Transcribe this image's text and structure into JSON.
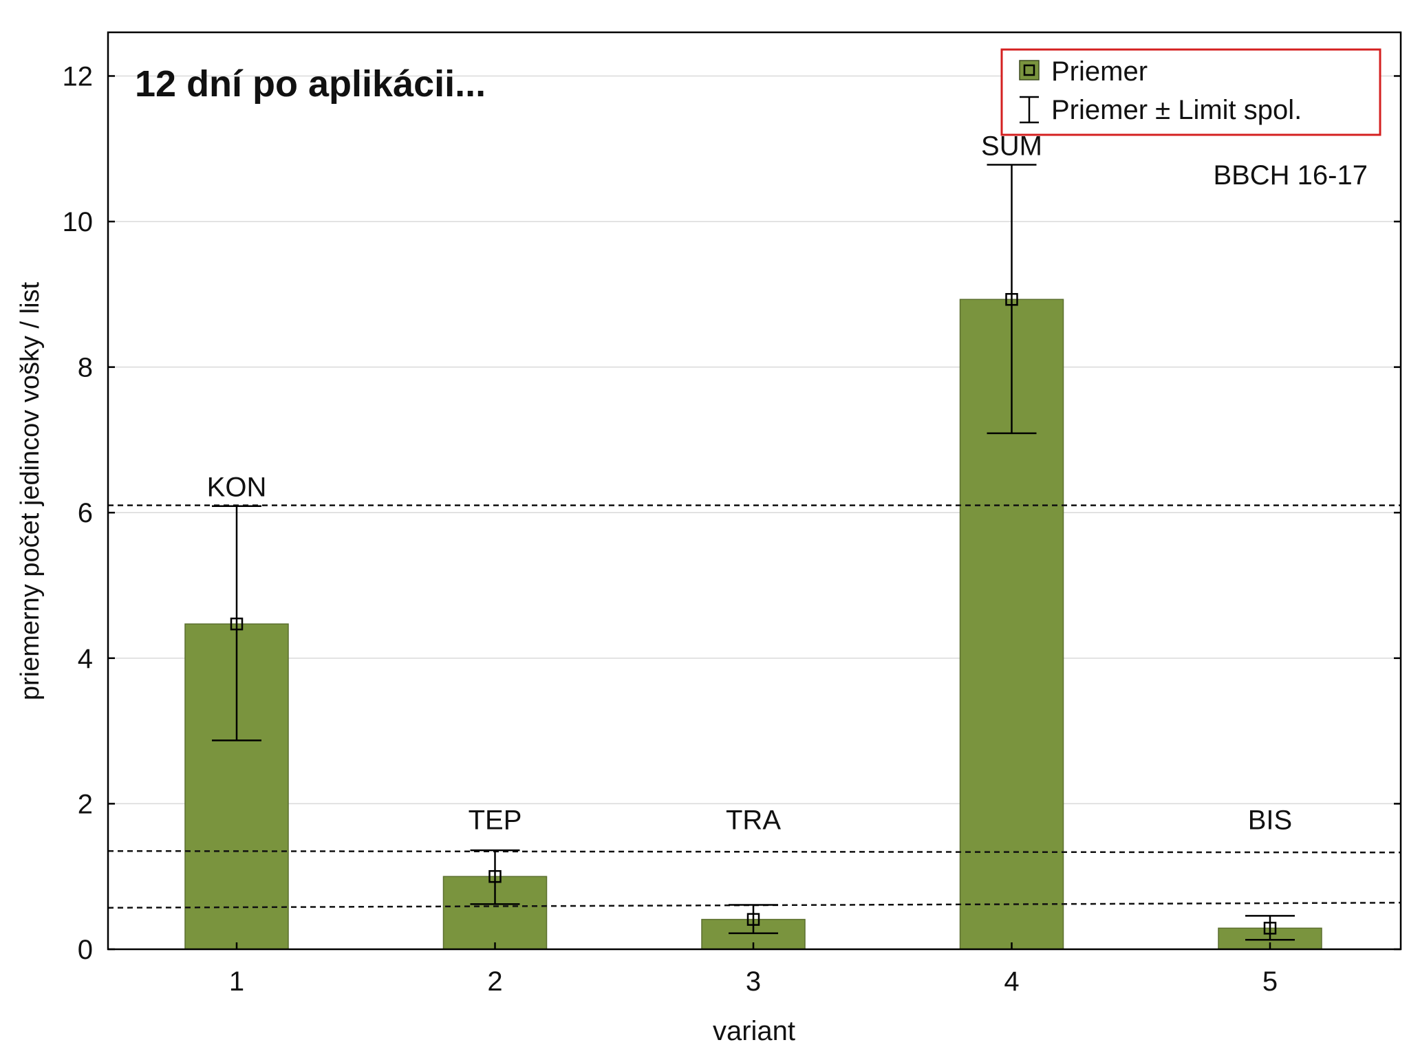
{
  "chart_data": {
    "type": "bar",
    "title": "12 dní po aplikácii...",
    "annotation": "BBCH 16-17",
    "xlabel": "variant",
    "ylabel": "priemerny počet jedincov vošky / list",
    "categories": [
      "1",
      "2",
      "3",
      "4",
      "5"
    ],
    "bar_labels": [
      "KON",
      "TEP",
      "TRA",
      "SUM",
      "BIS"
    ],
    "ylim": [
      0,
      12.6
    ],
    "yticks": [
      0,
      2,
      4,
      6,
      8,
      10,
      12
    ],
    "ytick_labels": [
      "0",
      "2",
      "4",
      "6",
      "8",
      "10",
      "12"
    ],
    "grid": true,
    "legend_position": "top-right",
    "legend": {
      "mean_label": "Priemer",
      "ci_label": "Priemer ± Limit spol."
    },
    "series": [
      {
        "name": "Priemer",
        "values": [
          4.47,
          1.0,
          0.41,
          8.93,
          0.29
        ],
        "ci_lower": [
          2.87,
          0.62,
          0.22,
          7.09,
          0.13
        ],
        "ci_upper": [
          6.09,
          1.36,
          0.61,
          10.78,
          0.46
        ]
      }
    ],
    "reference_lines": [
      {
        "from": 6.1,
        "to": 6.1
      },
      {
        "from": 1.35,
        "to": 1.33
      },
      {
        "from": 0.57,
        "to": 0.64
      }
    ],
    "colors": {
      "bar_fill": "#7a943e",
      "bar_stroke": "#5b6f2e",
      "legend_border": "#d42020",
      "grid": "#d9d9d9",
      "axis": "#000000"
    }
  }
}
